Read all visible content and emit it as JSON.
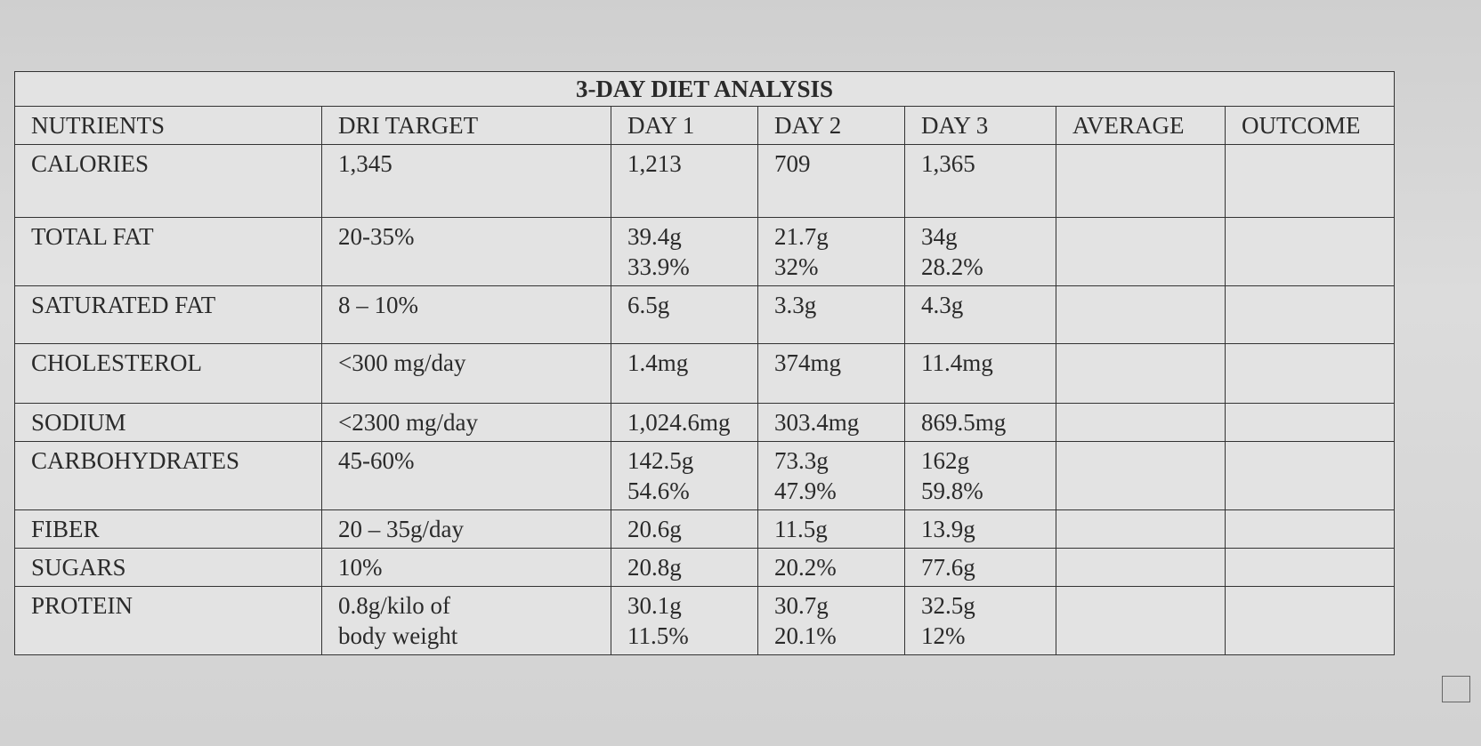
{
  "table": {
    "title": "3-DAY DIET ANALYSIS",
    "header": [
      "NUTRIENTS",
      "DRI TARGET",
      "DAY 1",
      "DAY 2",
      "DAY 3",
      "AVERAGE",
      "OUTCOME"
    ],
    "rows": [
      [
        [
          "CALORIES"
        ],
        [
          "1,345"
        ],
        [
          "1,213"
        ],
        [
          "709"
        ],
        [
          "1,365"
        ]
      ],
      [
        [
          "TOTAL FAT"
        ],
        [
          "20-35%"
        ],
        [
          "39.4g",
          "33.9%"
        ],
        [
          "21.7g",
          "32%"
        ],
        [
          "34g",
          "28.2%"
        ]
      ],
      [
        [
          "SATURATED FAT"
        ],
        [
          "8 – 10%"
        ],
        [
          "6.5g"
        ],
        [
          "3.3g"
        ],
        [
          "4.3g"
        ]
      ],
      [
        [
          "CHOLESTEROL"
        ],
        [
          "<300 mg/day"
        ],
        [
          "1.4mg"
        ],
        [
          "374mg"
        ],
        [
          "11.4mg"
        ]
      ],
      [
        [
          "SODIUM"
        ],
        [
          "<2300 mg/day"
        ],
        [
          "1,024.6mg"
        ],
        [
          "303.4mg"
        ],
        [
          "869.5mg"
        ]
      ],
      [
        [
          "CARBOHYDRATES"
        ],
        [
          "45-60%"
        ],
        [
          "142.5g",
          "54.6%"
        ],
        [
          "73.3g",
          "47.9%"
        ],
        [
          "162g",
          "59.8%"
        ]
      ],
      [
        [
          "FIBER"
        ],
        [
          "20 – 35g/day"
        ],
        [
          "20.6g"
        ],
        [
          "11.5g"
        ],
        [
          "13.9g"
        ]
      ],
      [
        [
          "SUGARS"
        ],
        [
          "10%"
        ],
        [
          "20.8g"
        ],
        [
          "20.2%"
        ],
        [
          "77.6g"
        ]
      ],
      [
        [
          "PROTEIN"
        ],
        [
          "0.8g/kilo of",
          "body weight"
        ],
        [
          "30.1g",
          "11.5%"
        ],
        [
          "30.7g",
          "20.1%"
        ],
        [
          "32.5g",
          "12%"
        ]
      ]
    ]
  }
}
